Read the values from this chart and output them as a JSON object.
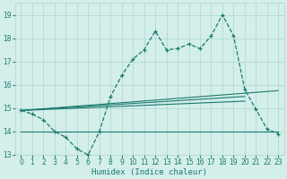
{
  "xlabel": "Humidex (Indice chaleur)",
  "background_color": "#d4eeea",
  "grid_color": "#a8d8d0",
  "line_color": "#1a7a6e",
  "xlim": [
    -0.5,
    23.5
  ],
  "ylim": [
    13.0,
    19.5
  ],
  "yticks": [
    13,
    14,
    15,
    16,
    17,
    18,
    19
  ],
  "xticks": [
    0,
    1,
    2,
    3,
    4,
    5,
    6,
    7,
    8,
    9,
    10,
    11,
    12,
    13,
    14,
    15,
    16,
    17,
    18,
    19,
    20,
    21,
    22,
    23
  ],
  "main_line_x": [
    0,
    1,
    2,
    3,
    4,
    5,
    6,
    7,
    8,
    9,
    10,
    11,
    12,
    13,
    14,
    15,
    16,
    17,
    18,
    19,
    20,
    21,
    22,
    23
  ],
  "main_line_y": [
    14.9,
    14.75,
    14.5,
    14.0,
    13.75,
    13.25,
    13.0,
    14.0,
    15.5,
    16.4,
    17.1,
    17.5,
    18.3,
    17.5,
    17.55,
    17.75,
    17.55,
    18.1,
    19.0,
    18.1,
    15.8,
    14.95,
    14.1,
    13.9
  ],
  "trend_line1_x": [
    0,
    23
  ],
  "trend_line1_y": [
    14.9,
    15.75
  ],
  "trend_line2_x": [
    0,
    20
  ],
  "trend_line2_y": [
    14.9,
    15.5
  ],
  "trend_line3_x": [
    0,
    20
  ],
  "trend_line3_y": [
    14.9,
    15.3
  ],
  "flat_line_x": [
    0,
    23
  ],
  "flat_line_y": [
    14.0,
    14.0
  ]
}
